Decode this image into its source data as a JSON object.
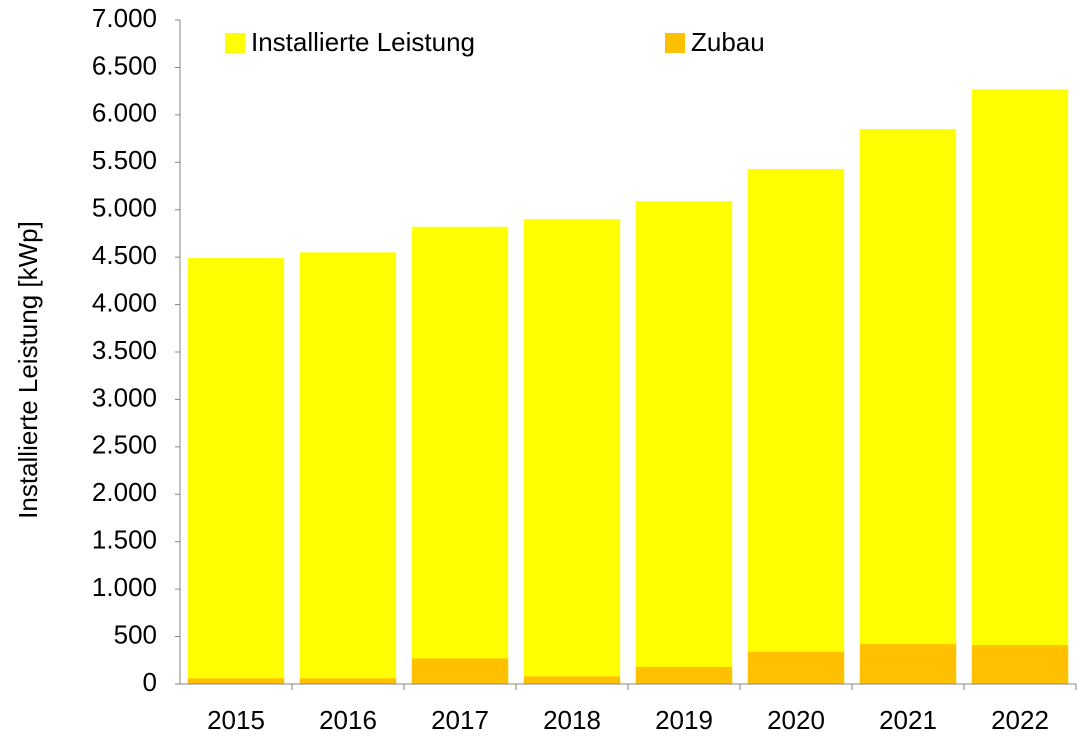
{
  "chart_data": {
    "type": "bar",
    "ylabel": "Installierte Leistung [kWp]",
    "categories": [
      "2015",
      "2016",
      "2017",
      "2018",
      "2019",
      "2020",
      "2021",
      "2022"
    ],
    "series": [
      {
        "name": "Installierte Leistung",
        "color": "#ffff00",
        "values": [
          4490,
          4550,
          4820,
          4900,
          5090,
          5430,
          5850,
          6270
        ]
      },
      {
        "name": "Zubau",
        "color": "#ffc000",
        "values": [
          60,
          60,
          270,
          80,
          180,
          340,
          420,
          410
        ]
      }
    ],
    "ylim": [
      0,
      7000
    ],
    "yticks": [
      0,
      500,
      {
        "value": 1000,
        "label": "1.000"
      },
      {
        "value": 1500,
        "label": "1.500"
      },
      {
        "value": 2000,
        "label": "2.000"
      },
      {
        "value": 2500,
        "label": "2.500"
      },
      {
        "value": 3000,
        "label": "3.000"
      },
      {
        "value": 3500,
        "label": "3.500"
      },
      {
        "value": 4000,
        "label": "4.000"
      },
      {
        "value": 4500,
        "label": "4.500"
      },
      {
        "value": 5000,
        "label": "5.000"
      },
      {
        "value": 5500,
        "label": "5.500"
      },
      {
        "value": 6000,
        "label": "6.000"
      },
      {
        "value": 6500,
        "label": "6.500"
      },
      {
        "value": 7000,
        "label": "7.000"
      }
    ],
    "legend": "top",
    "grid": false
  }
}
